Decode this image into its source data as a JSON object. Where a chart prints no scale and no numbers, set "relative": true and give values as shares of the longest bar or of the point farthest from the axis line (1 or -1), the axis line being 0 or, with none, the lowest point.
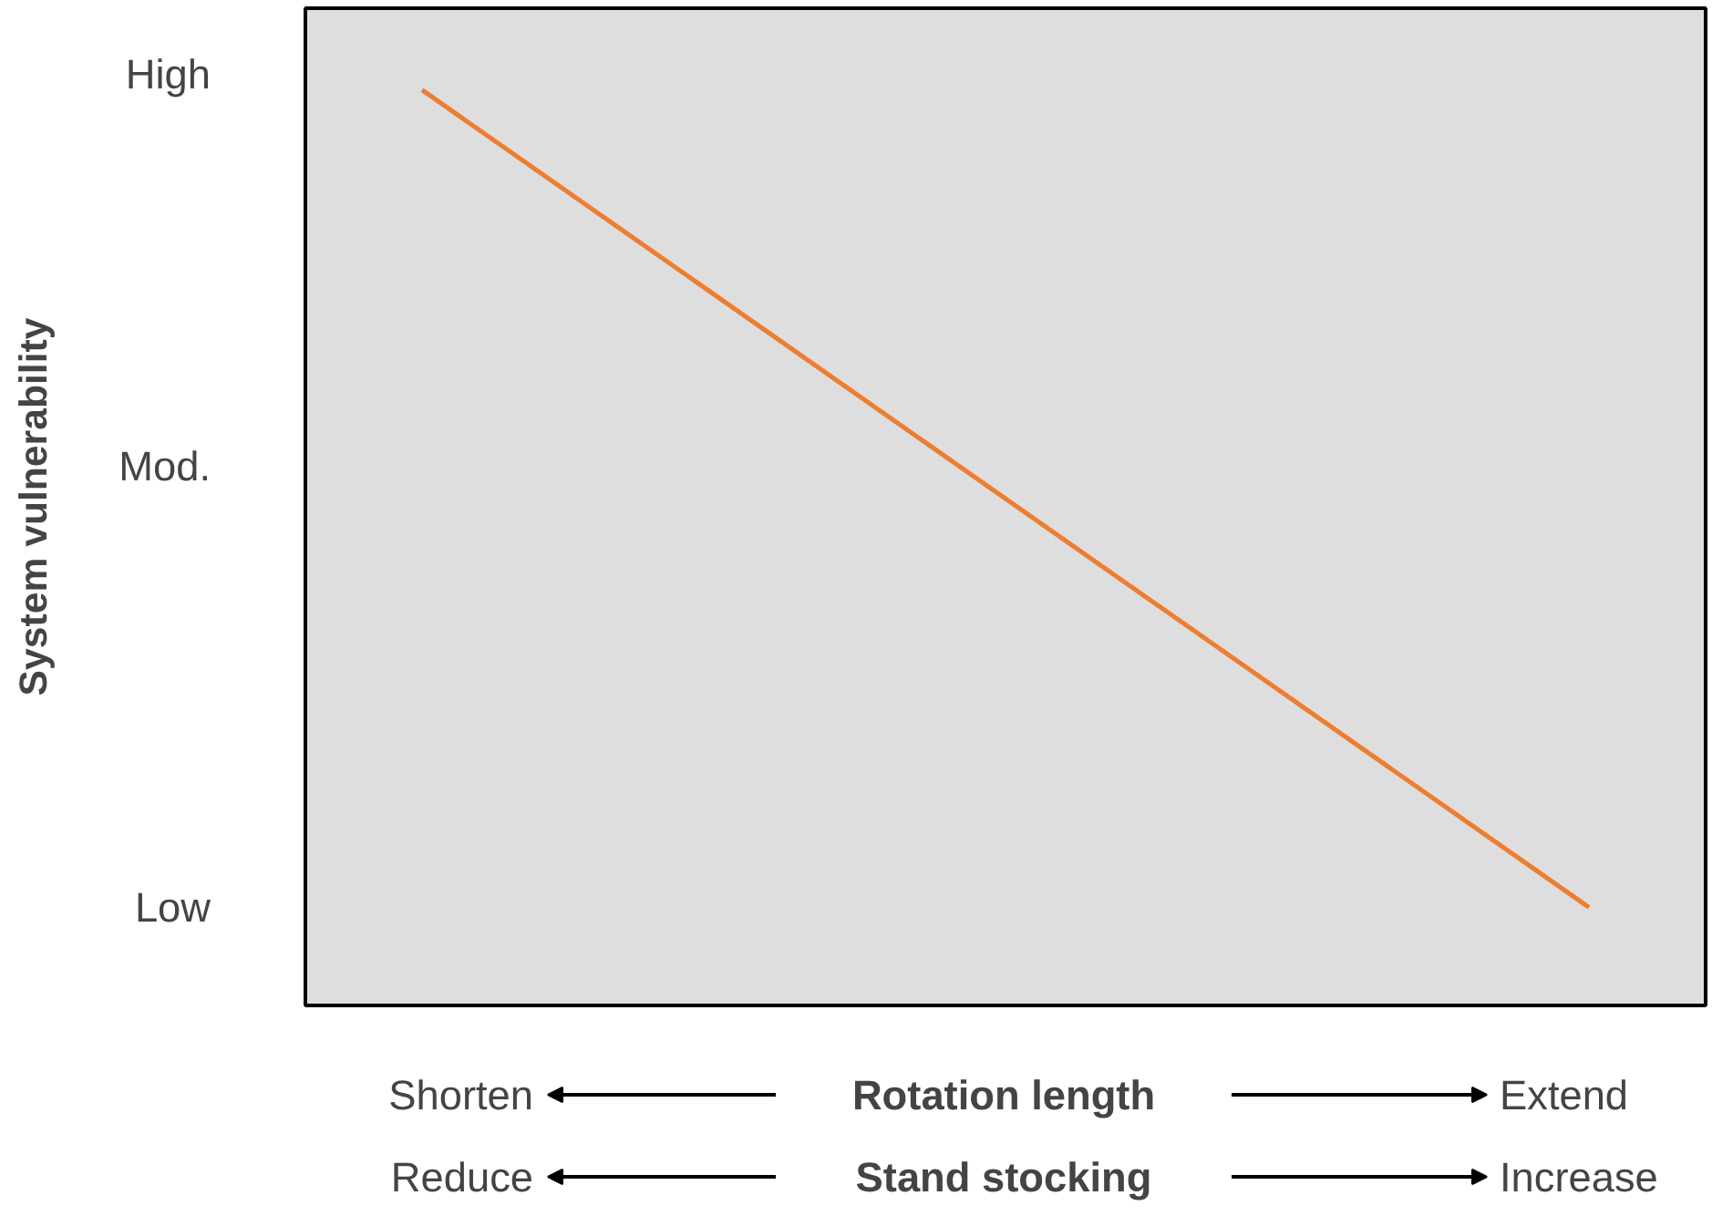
{
  "chart_data": {
    "type": "line",
    "ylabel": "System vulnerability",
    "categories": [
      null,
      null
    ],
    "series": [
      {
        "color": "#ed7d31",
        "values": [
          1,
          0
        ]
      }
    ],
    "relative": true,
    "tick_labels": false,
    "grid": false,
    "annotations": [
      "High",
      "Mod.",
      "Low",
      "Shorten",
      "Rotation length",
      "Extend",
      "Reduce",
      "Stand stocking",
      "Increase"
    ]
  }
}
